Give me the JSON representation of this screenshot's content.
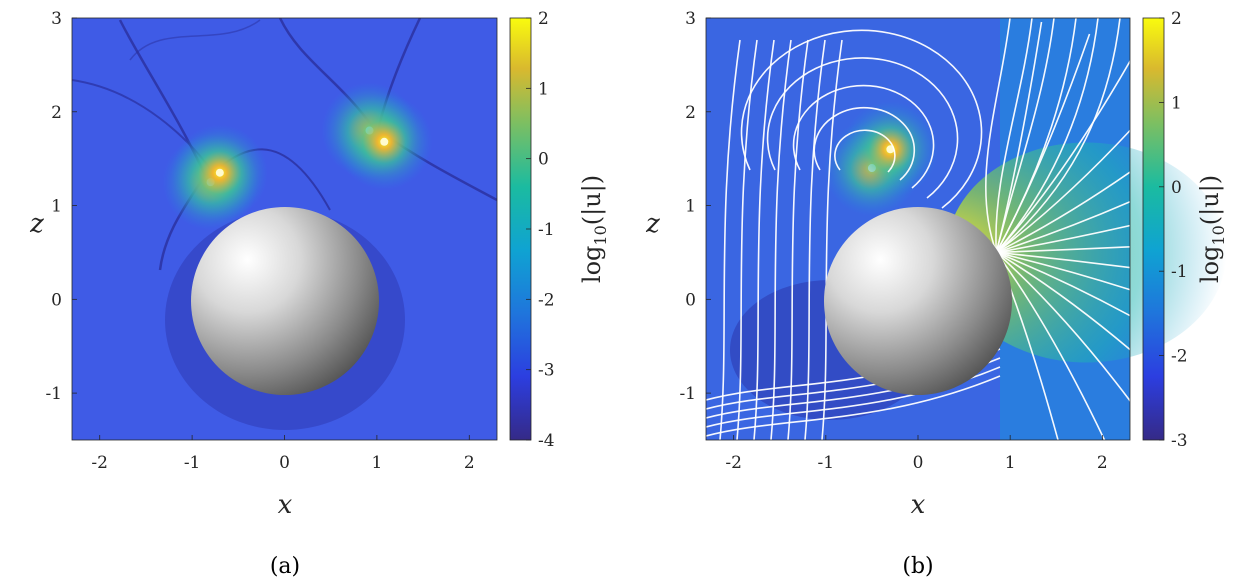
{
  "chart_data": [
    {
      "type": "heatmap",
      "caption": "(a)",
      "xlabel": "x",
      "ylabel": "z",
      "xlim": [
        -2.3,
        2.3
      ],
      "ylim": [
        -1.5,
        3
      ],
      "xticks": [
        "-2",
        "-1",
        "0",
        "1",
        "2"
      ],
      "yticks": [
        "-1",
        "0",
        "1",
        "2",
        "3"
      ],
      "colorbar": {
        "label": "log10(|u|)",
        "label_main": "log",
        "label_sub": "10",
        "label_arg": "(|u|)",
        "ticks": [
          "2",
          "1",
          "0",
          "-1",
          "-2",
          "-3",
          "-4"
        ],
        "range": [
          -4,
          2
        ]
      },
      "sphere": {
        "center": [
          0,
          0
        ],
        "radius": 1
      },
      "hotspots": [
        {
          "x": -0.8,
          "z": 1.25
        },
        {
          "x": -0.7,
          "z": 1.35
        },
        {
          "x": 0.92,
          "z": 1.8
        },
        {
          "x": 1.08,
          "z": 1.68
        }
      ],
      "streamlines": false
    },
    {
      "type": "heatmap",
      "caption": "(b)",
      "xlabel": "x",
      "ylabel": "z",
      "xlim": [
        -2.3,
        2.3
      ],
      "ylim": [
        -1.5,
        3
      ],
      "xticks": [
        "-2",
        "-1",
        "0",
        "1",
        "2"
      ],
      "yticks": [
        "-1",
        "0",
        "1",
        "2",
        "3"
      ],
      "colorbar": {
        "label": "log10(|u|)",
        "label_main": "log",
        "label_sub": "10",
        "label_arg": "(|u|)",
        "ticks": [
          "2",
          "1",
          "0",
          "-1",
          "-2",
          "-3"
        ],
        "range": [
          -3,
          2
        ]
      },
      "sphere": {
        "center": [
          0,
          0
        ],
        "radius": 1
      },
      "hotspots": [
        {
          "x": -0.5,
          "z": 1.4
        },
        {
          "x": -0.3,
          "z": 1.6
        },
        {
          "x": 0.85,
          "z": 0.5
        }
      ],
      "streamlines": true
    }
  ],
  "colors": {
    "background_field": "#3e5ee6",
    "streamline": "#ffffff"
  }
}
